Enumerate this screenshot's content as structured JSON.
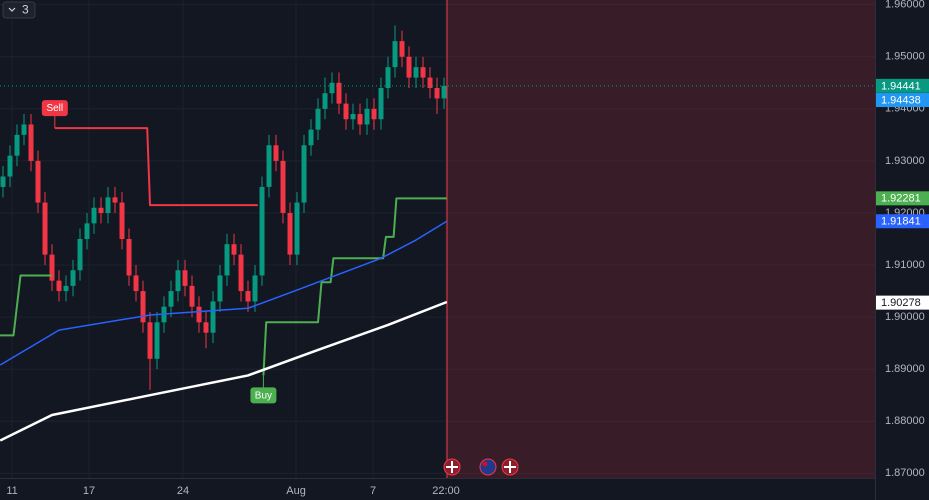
{
  "chart_data": {
    "type": "candlestick",
    "interval_badge": "3",
    "xlim": [
      -0.43,
      124.57
    ],
    "xticks": [
      {
        "value": 1.29,
        "label": "11"
      },
      {
        "value": 12.29,
        "label": "17"
      },
      {
        "value": 25.71,
        "label": "24"
      },
      {
        "value": 41.86,
        "label": "Aug"
      },
      {
        "value": 52.86,
        "label": "7"
      },
      {
        "value": 63.29,
        "label": "22:00"
      }
    ],
    "ylim": [
      1.8691,
      1.9609
    ],
    "yticks": [
      {
        "value": 1.96,
        "label": "1.96000"
      },
      {
        "value": 1.95,
        "label": "1.95000"
      },
      {
        "value": 1.94,
        "label": "1.94000"
      },
      {
        "value": 1.93,
        "label": "1.93000"
      },
      {
        "value": 1.92,
        "label": "1.92000"
      },
      {
        "value": 1.91,
        "label": "1.91000"
      },
      {
        "value": 1.9,
        "label": "1.90000"
      },
      {
        "value": 1.89,
        "label": "1.89000"
      },
      {
        "value": 1.88,
        "label": "1.88000"
      },
      {
        "value": 1.87,
        "label": "1.87000"
      }
    ],
    "grid": true,
    "up_color": "#089981",
    "down_color": "#f23645",
    "shade_from": 63.43,
    "open": [
      1.925,
      1.927,
      1.931,
      1.935,
      1.937,
      1.93,
      1.922,
      1.912,
      1.907,
      1.905,
      1.906,
      1.909,
      1.915,
      1.918,
      1.921,
      1.92,
      1.923,
      1.922,
      1.915,
      1.908,
      1.905,
      1.899,
      1.892,
      1.899,
      1.902,
      1.905,
      1.909,
      1.906,
      1.902,
      1.899,
      1.897,
      1.903,
      1.908,
      1.914,
      1.912,
      1.905,
      1.903,
      1.908,
      1.925,
      1.933,
      1.93,
      1.92,
      1.912,
      1.922,
      1.933,
      1.936,
      1.94,
      1.943,
      1.945,
      1.941,
      1.938,
      1.939,
      1.937,
      1.94,
      1.938,
      1.944,
      1.948,
      1.953,
      1.95,
      1.946,
      1.948,
      1.946,
      1.944,
      1.942
    ],
    "high": [
      1.929,
      1.933,
      1.937,
      1.939,
      1.939,
      1.932,
      1.924,
      1.914,
      1.909,
      1.908,
      1.911,
      1.917,
      1.92,
      1.923,
      1.923,
      1.925,
      1.925,
      1.924,
      1.917,
      1.91,
      1.907,
      1.901,
      1.901,
      1.904,
      1.907,
      1.911,
      1.911,
      1.908,
      1.904,
      1.901,
      1.905,
      1.91,
      1.916,
      1.916,
      1.914,
      1.907,
      1.91,
      1.927,
      1.935,
      1.935,
      1.932,
      1.922,
      1.924,
      1.935,
      1.938,
      1.942,
      1.946,
      1.947,
      1.947,
      1.943,
      1.941,
      1.941,
      1.942,
      1.942,
      1.946,
      1.95,
      1.956,
      1.955,
      1.952,
      1.95,
      1.95,
      1.948,
      1.946,
      1.946
    ],
    "low": [
      1.923,
      1.925,
      1.929,
      1.933,
      1.928,
      1.92,
      1.91,
      1.905,
      1.903,
      1.903,
      1.904,
      1.907,
      1.913,
      1.916,
      1.918,
      1.918,
      1.92,
      1.913,
      1.906,
      1.903,
      1.897,
      1.886,
      1.89,
      1.897,
      1.9,
      1.903,
      1.904,
      1.9,
      1.897,
      1.894,
      1.895,
      1.901,
      1.906,
      1.91,
      1.903,
      1.901,
      1.901,
      1.906,
      1.923,
      1.928,
      1.918,
      1.91,
      1.91,
      1.92,
      1.931,
      1.934,
      1.938,
      1.941,
      1.939,
      1.936,
      1.936,
      1.935,
      1.935,
      1.936,
      1.936,
      1.942,
      1.946,
      1.948,
      1.944,
      1.944,
      1.944,
      1.942,
      1.939,
      1.94
    ],
    "close": [
      1.927,
      1.931,
      1.935,
      1.937,
      1.93,
      1.922,
      1.912,
      1.907,
      1.905,
      1.906,
      1.909,
      1.915,
      1.918,
      1.921,
      1.92,
      1.923,
      1.922,
      1.915,
      1.908,
      1.905,
      1.899,
      1.892,
      1.899,
      1.902,
      1.905,
      1.909,
      1.906,
      1.902,
      1.899,
      1.897,
      1.903,
      1.908,
      1.914,
      1.912,
      1.905,
      1.903,
      1.908,
      1.925,
      1.933,
      1.93,
      1.92,
      1.912,
      1.922,
      1.933,
      1.936,
      1.94,
      1.943,
      1.945,
      1.941,
      1.938,
      1.939,
      1.937,
      1.94,
      1.938,
      1.944,
      1.948,
      1.953,
      1.95,
      1.946,
      1.948,
      1.946,
      1.944,
      1.942,
      1.9444
    ],
    "series": [
      {
        "color": "#f23645",
        "width": 2,
        "x": [
          7.4,
          20.6,
          21.0,
          36.4
        ],
        "values": [
          1.9363,
          1.9363,
          1.9215,
          1.9215
        ]
      },
      {
        "color": "#4caf50",
        "width": 2,
        "x": [
          -0.5,
          1.5,
          2.5,
          7.0,
          7.0,
          37.2,
          37.6,
          45.0,
          45.5,
          46.8,
          47.2,
          54.3,
          54.7,
          55.8,
          56.2,
          63.4
        ],
        "values": [
          1.8965,
          1.8965,
          1.908,
          1.908,
          null,
          1.8888,
          1.899,
          1.899,
          1.9067,
          1.9067,
          1.9113,
          1.9113,
          1.9154,
          1.9154,
          1.9228,
          1.9228
        ]
      },
      {
        "color": "#2962ff",
        "width": 1.5,
        "x": [
          -0.4,
          8,
          21,
          35,
          42,
          54,
          59,
          63.4
        ],
        "values": [
          1.8908,
          1.8975,
          1.9004,
          1.9017,
          1.9052,
          1.9113,
          1.9148,
          1.9184
        ]
      },
      {
        "color": "#ffffff",
        "width": 2.5,
        "x": [
          -0.4,
          7,
          21,
          28,
          35,
          45,
          55,
          63.4
        ],
        "values": [
          1.8763,
          1.8812,
          1.885,
          1.8869,
          1.8888,
          1.8937,
          1.8985,
          1.9029
        ]
      }
    ],
    "annotations": [
      {
        "text": "Sell",
        "x": 7.4,
        "y": 1.9363,
        "color": "#f23645",
        "side": "above"
      },
      {
        "text": "Buy",
        "x": 37.2,
        "y": 1.8888,
        "color": "#4caf50",
        "side": "below"
      }
    ],
    "price_markers": [
      {
        "value": 1.94441,
        "color": "#089981",
        "text_color": "#ffffff",
        "dotted": true
      },
      {
        "value": 1.94438,
        "color": "#2196f3",
        "text_color": "#ffffff"
      },
      {
        "value": 1.92281,
        "color": "#4caf50",
        "text_color": "#ffffff"
      },
      {
        "value": 1.91841,
        "color": "#2962ff",
        "text_color": "#ffffff"
      },
      {
        "value": 1.90278,
        "color": "#ffffff",
        "text_color": "#131722"
      }
    ]
  }
}
